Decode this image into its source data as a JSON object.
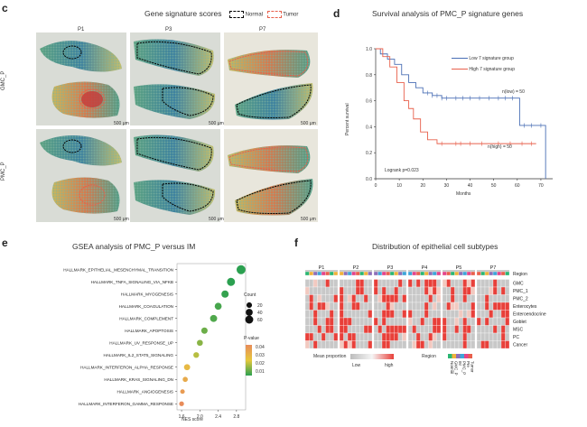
{
  "panel_c": {
    "letter": "c",
    "title": "Gene signature scores",
    "legend": {
      "normal": "Normal",
      "tumor": "Tumor"
    },
    "columns": [
      "P1",
      "P3",
      "P7"
    ],
    "rows": [
      "GMC_P",
      "PMC_P"
    ],
    "scalebar": "500 μm"
  },
  "panel_d": {
    "letter": "d",
    "chart_data": {
      "type": "line",
      "title": "Survival analysis of PMC_P signature genes",
      "xlabel": "Months",
      "ylabel": "Percent survival",
      "xticks": [
        "0",
        "10",
        "20",
        "30",
        "40",
        "50",
        "60",
        "70"
      ],
      "yticks": [
        "0.0",
        "0.2",
        "0.4",
        "0.6",
        "0.8",
        "1.0"
      ],
      "xlim": [
        0,
        75
      ],
      "ylim": [
        0,
        1
      ],
      "series": [
        {
          "name": "Low 7 signature group",
          "color": "#4a6fb5",
          "points": [
            [
              0,
              1
            ],
            [
              2,
              0.96
            ],
            [
              5,
              0.92
            ],
            [
              8,
              0.88
            ],
            [
              11,
              0.8
            ],
            [
              14,
              0.74
            ],
            [
              17,
              0.7
            ],
            [
              20,
              0.66
            ],
            [
              24,
              0.64
            ],
            [
              28,
              0.62
            ],
            [
              60,
              0.62
            ],
            [
              61,
              0.41
            ],
            [
              72,
              0.41
            ],
            [
              72,
              0
            ]
          ],
          "censor": [
            22,
            24,
            26,
            28,
            30,
            34,
            37,
            40,
            44,
            48,
            52,
            55,
            58,
            63,
            66,
            70
          ],
          "n_label": "n(low) = 50"
        },
        {
          "name": "High 7 signature group",
          "color": "#e8604c",
          "points": [
            [
              0,
              1
            ],
            [
              3,
              0.94
            ],
            [
              6,
              0.86
            ],
            [
              9,
              0.74
            ],
            [
              12,
              0.6
            ],
            [
              14,
              0.54
            ],
            [
              16,
              0.46
            ],
            [
              19,
              0.36
            ],
            [
              22,
              0.3
            ],
            [
              26,
              0.27
            ],
            [
              30,
              0.27
            ],
            [
              68,
              0.27
            ]
          ],
          "censor": [
            28,
            34,
            36,
            40,
            45,
            52,
            57,
            62,
            66
          ],
          "n_label": "n(high) = 50"
        }
      ],
      "annotation": "Logrank p=0.023"
    }
  },
  "panel_e": {
    "letter": "e",
    "chart_data": {
      "type": "scatter",
      "title": "GSEA analysis of PMC_P versus IM",
      "xlabel": "NES score",
      "xticks": [
        "1.6",
        "2.0",
        "2.4",
        "2.8"
      ],
      "xlim": [
        1.5,
        3.0
      ],
      "categories": [
        "HALLMARK_EPITHELIAL_MESENCHYMAL_TRANSITION",
        "HALLMARK_TNFA_SIGNALING_VIA_NFKB",
        "HALLMARK_MYOGENESIS",
        "HALLMARK_COAGULATION",
        "HALLMARK_COMPLEMENT",
        "HALLMARK_APOPTOSIS",
        "HALLMARK_UV_RESPONSE_UP",
        "HALLMARK_IL2_STAT5_SIGNALING",
        "HALLMARK_INTERFERON_ALPHA_RESPONSE",
        "HALLMARK_KRAS_SIGNALING_DN",
        "HALLMARK_ANGIOGENESIS",
        "HALLMARK_INTERFERON_GAMMA_RESPONSE"
      ],
      "nes": [
        2.9,
        2.68,
        2.55,
        2.4,
        2.3,
        2.1,
        2.0,
        1.92,
        1.72,
        1.68,
        1.62,
        1.6
      ],
      "count": [
        80,
        60,
        45,
        40,
        42,
        30,
        25,
        22,
        28,
        15,
        10,
        12
      ],
      "pvalue": [
        0.005,
        0.005,
        0.006,
        0.008,
        0.009,
        0.012,
        0.015,
        0.02,
        0.03,
        0.035,
        0.04,
        0.045
      ],
      "size_legend": {
        "title": "Count",
        "values": [
          "20",
          "40",
          "60"
        ]
      },
      "color_legend": {
        "title": "P-value",
        "values": [
          "0.04",
          "0.03",
          "0.02",
          "0.01"
        ]
      }
    }
  },
  "panel_f": {
    "letter": "f",
    "chart_data": {
      "type": "heatmap",
      "title": "Distribution of epithelial cell subtypes",
      "groups": [
        "P1",
        "P2",
        "P3",
        "P4",
        "P5",
        "P7"
      ],
      "rows": [
        "Region",
        "GMC",
        "PMC_1",
        "PMC_2",
        "Enterocytes",
        "Enteroendocrine",
        "Goblet",
        "MSC",
        "PC",
        "Cancer"
      ],
      "legend_mean": "Mean proportion",
      "legend_low": "Low",
      "legend_high": "high",
      "legend_region": "Region",
      "region_names": [
        "Normal",
        "GMC_P",
        "IM",
        "PMC_P",
        "Pre",
        "Tumor"
      ],
      "region_colors": [
        "#2bb673",
        "#f0b23c",
        "#8e6fb8",
        "#3fa6d9",
        "#e4458a",
        "#e8604c"
      ]
    }
  }
}
